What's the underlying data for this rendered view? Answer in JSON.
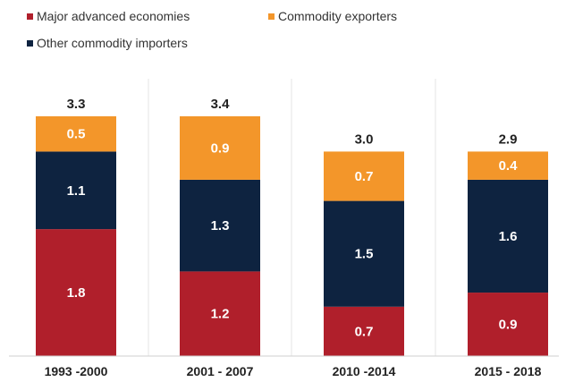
{
  "chart_data": {
    "type": "bar",
    "stacked": true,
    "categories": [
      "1993 -2000",
      "2001 - 2007",
      "2010 -2014",
      "2015 - 2018"
    ],
    "series": [
      {
        "name": "Major advanced economies",
        "values": [
          1.8,
          1.2,
          0.7,
          0.9
        ],
        "color": "#b01f2b"
      },
      {
        "name": "Other commodity importers",
        "values": [
          1.1,
          1.3,
          1.5,
          1.6
        ],
        "color": "#0e2340"
      },
      {
        "name": "Commodity exporters",
        "values": [
          0.5,
          0.9,
          0.7,
          0.4
        ],
        "color": "#f3962a"
      }
    ],
    "totals": [
      "3.3",
      "3.4",
      "3.0",
      "2.9"
    ],
    "legend": [
      "Major advanced economies",
      "Commodity exporters",
      "Other commodity importers"
    ],
    "legend_placement": "top-left",
    "ylim": [
      0,
      3.8
    ],
    "grid": false
  }
}
